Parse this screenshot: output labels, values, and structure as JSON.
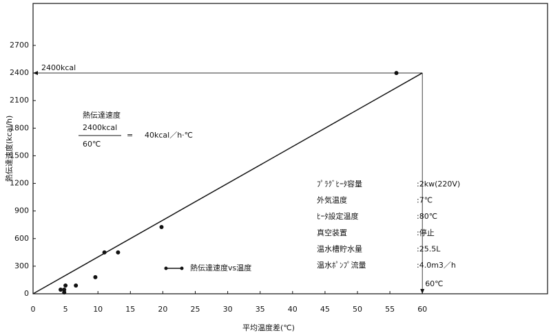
{
  "chart_data": {
    "type": "scatter",
    "x_label": "平均温度差(℃)",
    "y_label": "熱伝達速度(kcal/h)",
    "xlim": [
      0,
      79.3
    ],
    "ylim": [
      0,
      3156
    ],
    "xticks": [
      0,
      5,
      10,
      15,
      20,
      25,
      30,
      35,
      40,
      45,
      50,
      55,
      60
    ],
    "yticks": [
      0,
      300,
      600,
      900,
      1200,
      1500,
      1800,
      2100,
      2400,
      2700
    ],
    "series": [
      {
        "name": "熱伝達速度vs温度",
        "color": "#111111",
        "x": [
          4.25,
          4.8,
          4.8,
          5.0,
          6.6,
          9.6,
          11.0,
          13.1,
          19.8,
          56.0
        ],
        "values": [
          45,
          45,
          15,
          90,
          90,
          180,
          450,
          450,
          725,
          2400
        ]
      }
    ],
    "fit_line": {
      "x": [
        0,
        60
      ],
      "y": [
        0,
        2400
      ]
    },
    "reference": {
      "x": 60,
      "y": 2400,
      "x_label": "60℃",
      "y_label": "2400kcal"
    },
    "formula": {
      "title": "熱伝達速度",
      "numerator": "2400kcal",
      "denominator": "60℃",
      "equals": "=",
      "result": "40kcal／h·℃"
    },
    "specs": [
      {
        "label": "ﾌﾟﾗｸﾞﾋｰﾀ容量",
        "value": ":2kw(220V)"
      },
      {
        "label": "外気温度",
        "value": ":7℃"
      },
      {
        "label": "ﾋｰﾀ設定温度",
        "value": ":80℃"
      },
      {
        "label": "真空装置",
        "value": ":停止"
      },
      {
        "label": "温水槽貯水量",
        "value": ":25.5L"
      },
      {
        "label": "温水ﾎﾟﾝﾌﾟ流量",
        "value": ":4.0m3／h"
      }
    ]
  }
}
